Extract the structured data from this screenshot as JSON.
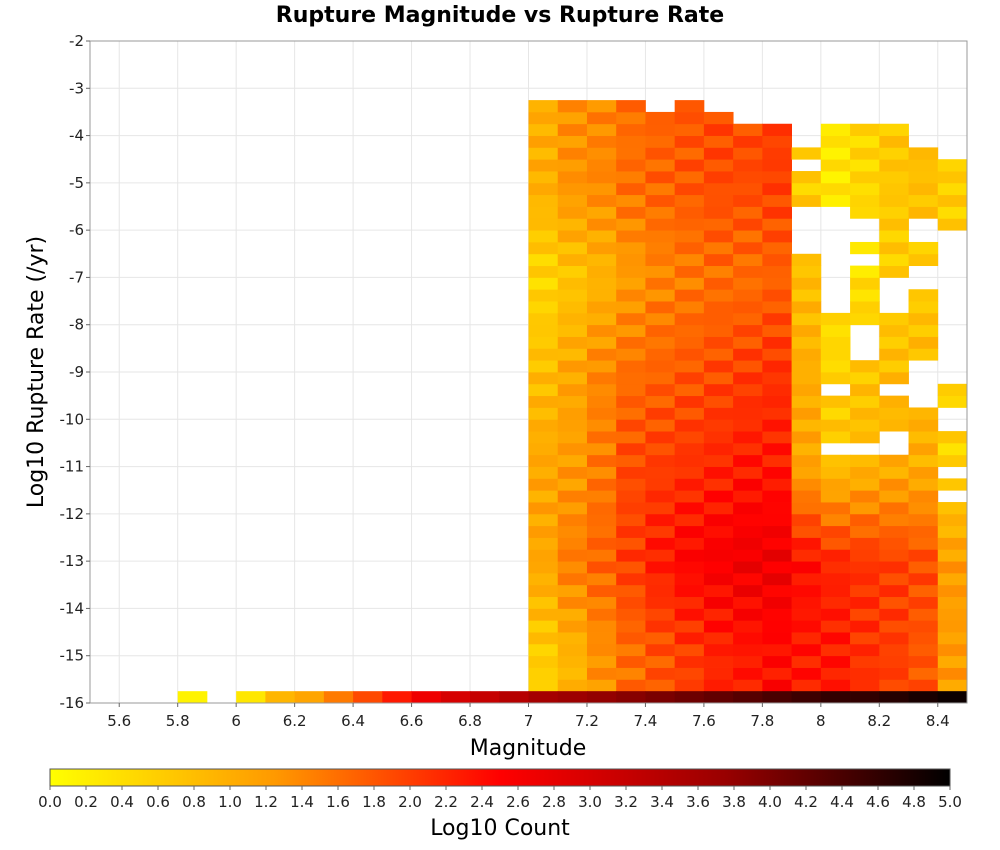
{
  "chart_data": {
    "type": "heatmap",
    "title": "Rupture Magnitude vs Rupture Rate",
    "xlabel": "Magnitude",
    "ylabel": "Log10 Rupture Rate (/yr)",
    "xlim": [
      5.5,
      8.5
    ],
    "ylim": [
      -16,
      -2
    ],
    "x_ticks": [
      "5.6",
      "5.8",
      "6",
      "6.2",
      "6.4",
      "6.6",
      "6.8",
      "7",
      "7.2",
      "7.4",
      "7.6",
      "7.8",
      "8",
      "8.2",
      "8.4"
    ],
    "y_ticks": [
      "-2",
      "-3",
      "-4",
      "-5",
      "-6",
      "-7",
      "-8",
      "-9",
      "-10",
      "-11",
      "-12",
      "-13",
      "-14",
      "-15",
      "-16"
    ],
    "grid": true,
    "x_bins": [
      5.55,
      5.65,
      5.75,
      5.85,
      5.95,
      6.05,
      6.15,
      6.25,
      6.35,
      6.45,
      6.55,
      6.65,
      6.75,
      6.85,
      6.95,
      7.05,
      7.15,
      7.25,
      7.35,
      7.45,
      7.55,
      7.65,
      7.75,
      7.85,
      7.95,
      8.05,
      8.15,
      8.25,
      8.35,
      8.45
    ],
    "y_bins": [
      -15.875,
      -15.625,
      -15.375,
      -15.125,
      -14.875,
      -14.625,
      -14.375,
      -14.125,
      -13.875,
      -13.625,
      -13.375,
      -13.125,
      -12.875,
      -12.625,
      -12.375,
      -12.125,
      -11.875,
      -11.625,
      -11.375,
      -11.125,
      -10.875,
      -10.625,
      -10.375,
      -10.125,
      -9.875,
      -9.625,
      -9.375,
      -9.125,
      -8.875,
      -8.625,
      -8.375,
      -8.125,
      -7.875,
      -7.625,
      -7.375,
      -7.125,
      -6.875,
      -6.625,
      -6.375,
      -6.125,
      -5.875,
      -5.625,
      -5.375,
      -5.125,
      -4.875,
      -4.625,
      -4.375,
      -4.125,
      -3.875,
      -3.625,
      -3.375
    ],
    "colorbar": {
      "label": "Log10 Count",
      "min": 0.0,
      "max": 5.0,
      "ticks": [
        "0.0",
        "0.2",
        "0.4",
        "0.6",
        "0.8",
        "1.0",
        "1.2",
        "1.4",
        "1.6",
        "1.8",
        "2.0",
        "2.2",
        "2.4",
        "2.6",
        "2.8",
        "3.0",
        "3.2",
        "3.4",
        "3.6",
        "3.8",
        "4.0",
        "4.2",
        "4.4",
        "4.6",
        "4.8",
        "5.0"
      ],
      "colors": [
        "#ffff00",
        "#ff9900",
        "#ff0000",
        "#990000",
        "#000000"
      ]
    },
    "bottom_row_y": -15.875,
    "bottom_row": [
      null,
      null,
      null,
      0.15,
      null,
      0.3,
      0.9,
      1.1,
      1.5,
      1.9,
      2.3,
      2.7,
      3.0,
      3.2,
      3.4,
      3.6,
      3.7,
      3.8,
      3.9,
      4.0,
      4.1,
      4.2,
      4.3,
      4.4,
      4.5,
      4.6,
      4.6,
      4.7,
      4.8,
      4.9
    ],
    "column_profiles": {
      "7.05": {
        "high": [
          [
            -5,
            1.0
          ],
          [
            -7,
            0.5
          ],
          [
            -9,
            0.8
          ],
          [
            -11,
            1.1
          ],
          [
            -13,
            1.1
          ],
          [
            -15,
            0.6
          ]
        ],
        "top": -3.25
      },
      "7.15": {
        "high": [
          [
            -5,
            1.3
          ],
          [
            -7,
            0.7
          ],
          [
            -9,
            1.1
          ],
          [
            -11,
            1.2
          ],
          [
            -13,
            1.5
          ],
          [
            -15,
            0.9
          ]
        ],
        "top": -3.25
      },
      "7.25": {
        "high": [
          [
            -5,
            1.4
          ],
          [
            -7,
            0.9
          ],
          [
            -9,
            1.4
          ],
          [
            -11,
            1.5
          ],
          [
            -13,
            1.7
          ],
          [
            -15,
            1.3
          ]
        ],
        "top": -3.25
      },
      "7.35": {
        "high": [
          [
            -5,
            1.6
          ],
          [
            -7,
            1.2
          ],
          [
            -9,
            1.6
          ],
          [
            -11,
            1.9
          ],
          [
            -13,
            2.0
          ],
          [
            -15,
            1.6
          ]
        ],
        "top": -3.25
      },
      "7.45": {
        "high": [
          [
            -5,
            1.7
          ],
          [
            -7,
            1.4
          ],
          [
            -9,
            1.7
          ],
          [
            -11,
            2.0
          ],
          [
            -13,
            2.3
          ],
          [
            -15,
            1.8
          ]
        ],
        "top": -3.5
      },
      "7.55": {
        "high": [
          [
            -5,
            1.8
          ],
          [
            -7,
            1.5
          ],
          [
            -9,
            1.8
          ],
          [
            -11,
            2.1
          ],
          [
            -13,
            2.5
          ],
          [
            -15,
            2.0
          ]
        ],
        "top": -3.25
      },
      "7.65": {
        "high": [
          [
            -5,
            1.9
          ],
          [
            -7,
            1.6
          ],
          [
            -9,
            1.9
          ],
          [
            -11,
            2.2
          ],
          [
            -13,
            2.6
          ],
          [
            -15,
            2.2
          ]
        ],
        "top": -3.5
      },
      "7.75": {
        "high": [
          [
            -5,
            1.9
          ],
          [
            -7,
            1.6
          ],
          [
            -9,
            2.0
          ],
          [
            -11,
            2.3
          ],
          [
            -13,
            2.7
          ],
          [
            -15,
            2.3
          ]
        ],
        "top": -3.75
      },
      "7.85": {
        "high": [
          [
            -5,
            2.0
          ],
          [
            -7,
            1.7
          ],
          [
            -9,
            2.1
          ],
          [
            -11,
            2.3
          ],
          [
            -13,
            2.7
          ],
          [
            -15,
            2.4
          ]
        ],
        "top": -3.75
      },
      "7.95": {
        "high": [
          [
            -5,
            0.6
          ],
          [
            -7,
            0.8
          ],
          [
            -9,
            1.0
          ],
          [
            -11,
            1.1
          ],
          [
            -13,
            2.4
          ],
          [
            -15,
            2.3
          ]
        ],
        "top": -4.25
      },
      "8.05": {
        "high": [
          [
            -5,
            0.3
          ],
          [
            -7,
            0.4
          ],
          [
            -9,
            0.5
          ],
          [
            -11,
            0.8
          ],
          [
            -13,
            2.2
          ],
          [
            -15,
            2.3
          ]
        ],
        "top": -3.75
      },
      "8.15": {
        "high": [
          [
            -5,
            0.5
          ],
          [
            -7,
            0.4
          ],
          [
            -9,
            0.7
          ],
          [
            -11,
            0.9
          ],
          [
            -13,
            2.1
          ],
          [
            -15,
            2.1
          ]
        ],
        "top": -3.75
      },
      "8.25": {
        "high": [
          [
            -5,
            0.7
          ],
          [
            -7,
            0.6
          ],
          [
            -9,
            0.8
          ],
          [
            -11,
            1.0
          ],
          [
            -13,
            2.0
          ],
          [
            -15,
            2.0
          ]
        ],
        "top": -3.75
      },
      "8.35": {
        "high": [
          [
            -5,
            0.8
          ],
          [
            -7,
            0.6
          ],
          [
            -9,
            0.9
          ],
          [
            -11,
            1.0
          ],
          [
            -13,
            1.9
          ],
          [
            -15,
            1.8
          ]
        ],
        "top": -4.25
      },
      "8.45": {
        "high": [
          [
            -5,
            0.6
          ],
          [
            -7,
            null
          ],
          [
            -9,
            0.6
          ],
          [
            -11,
            0.5
          ],
          [
            -13,
            1.2
          ],
          [
            -15,
            1.2
          ]
        ],
        "top": -4.5
      }
    },
    "empty_cells": [
      [
        7.45,
        -3.375
      ],
      [
        7.65,
        -3.375
      ],
      [
        7.75,
        -3.375
      ],
      [
        7.85,
        -3.375
      ],
      [
        7.95,
        -3.625
      ],
      [
        7.95,
        -3.875
      ],
      [
        7.95,
        -4.125
      ],
      [
        7.95,
        -4.625
      ],
      [
        7.95,
        -5.625
      ],
      [
        7.95,
        -5.875
      ],
      [
        7.95,
        -6.125
      ],
      [
        7.95,
        -6.375
      ],
      [
        8.05,
        -5.625
      ],
      [
        8.05,
        -5.875
      ],
      [
        8.05,
        -6.125
      ],
      [
        8.05,
        -6.375
      ],
      [
        8.05,
        -6.625
      ],
      [
        8.05,
        -6.875
      ],
      [
        8.05,
        -7.125
      ],
      [
        8.05,
        -7.375
      ],
      [
        8.05,
        -7.625
      ],
      [
        8.15,
        -5.875
      ],
      [
        8.15,
        -6.125
      ],
      [
        8.15,
        -6.625
      ],
      [
        8.15,
        -8.125
      ],
      [
        8.15,
        -8.375
      ],
      [
        8.15,
        -8.625
      ],
      [
        8.05,
        -9.375
      ],
      [
        8.05,
        -10.625
      ],
      [
        8.15,
        -10.625
      ],
      [
        8.25,
        -7.125
      ],
      [
        8.25,
        -7.375
      ],
      [
        8.25,
        -7.625
      ],
      [
        8.25,
        -9.375
      ],
      [
        8.25,
        -10.375
      ],
      [
        8.25,
        -10.625
      ],
      [
        8.35,
        -5.875
      ],
      [
        8.35,
        -6.125
      ],
      [
        8.35,
        -6.875
      ],
      [
        8.35,
        -7.125
      ],
      [
        8.35,
        -8.875
      ],
      [
        8.35,
        -9.125
      ],
      [
        8.35,
        -9.375
      ],
      [
        8.35,
        -9.625
      ],
      [
        8.45,
        -4.375
      ],
      [
        8.45,
        -6.125
      ],
      [
        8.45,
        -6.375
      ],
      [
        8.45,
        -6.625
      ],
      [
        8.45,
        -6.875
      ],
      [
        8.45,
        -7.125
      ],
      [
        8.45,
        -7.375
      ],
      [
        8.45,
        -7.625
      ],
      [
        8.45,
        -7.875
      ],
      [
        8.45,
        -8.125
      ],
      [
        8.45,
        -8.375
      ],
      [
        8.45,
        -8.625
      ],
      [
        8.45,
        -8.875
      ],
      [
        8.45,
        -9.125
      ],
      [
        8.45,
        -9.875
      ],
      [
        8.45,
        -10.125
      ],
      [
        8.45,
        -11.125
      ],
      [
        8.45,
        -11.625
      ]
    ]
  }
}
